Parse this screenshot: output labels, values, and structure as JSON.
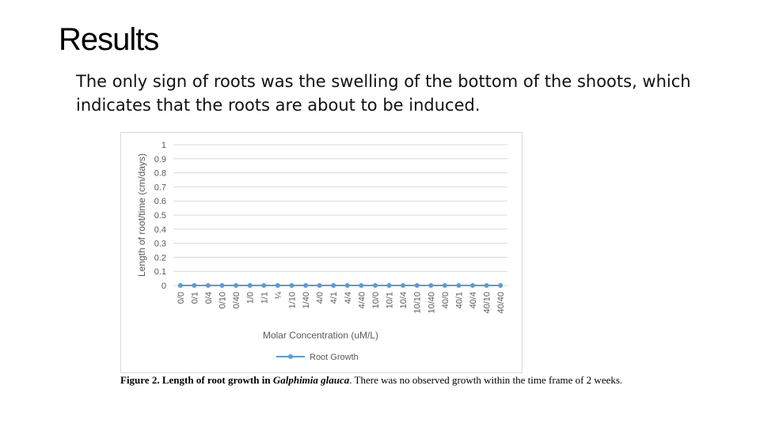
{
  "slide": {
    "title": "Results",
    "body": "The only sign of roots was the swelling of the bottom of the shoots, which indicates that the roots are about to be induced."
  },
  "caption": {
    "label": "Figure 2. Length of root growth in ",
    "species": "Galphimia glauca",
    "text": ". There was no observed growth within the time frame of 2 weeks."
  },
  "chart_data": {
    "type": "line",
    "title": "",
    "xlabel": "Molar Concentration (uM/L)",
    "ylabel": "Length of root/time (cm/days)",
    "ylim": [
      0,
      1
    ],
    "yticks": [
      "0",
      "0.1",
      "0.2",
      "0.3",
      "0.4",
      "0.5",
      "0.6",
      "0.7",
      "0.8",
      "0.9",
      "1"
    ],
    "categories": [
      "0/0",
      "0/1",
      "0/4",
      "0/10",
      "0/40",
      "1/0",
      "1/1",
      "¼",
      "1/10",
      "1/40",
      "4/0",
      "4/1",
      "4/4",
      "4/40",
      "10/0",
      "10/1",
      "10/4",
      "10/10",
      "10/40",
      "40/0",
      "40/1",
      "40/4",
      "40/10",
      "40/40"
    ],
    "series": [
      {
        "name": "Root Growth",
        "values": [
          0,
          0,
          0,
          0,
          0,
          0,
          0,
          0,
          0,
          0,
          0,
          0,
          0,
          0,
          0,
          0,
          0,
          0,
          0,
          0,
          0,
          0,
          0,
          0
        ]
      }
    ],
    "grid": true,
    "legend": "bottom",
    "color": "#5b9bd5",
    "grid_color": "#d9d9d9",
    "text_color": "#595959"
  }
}
